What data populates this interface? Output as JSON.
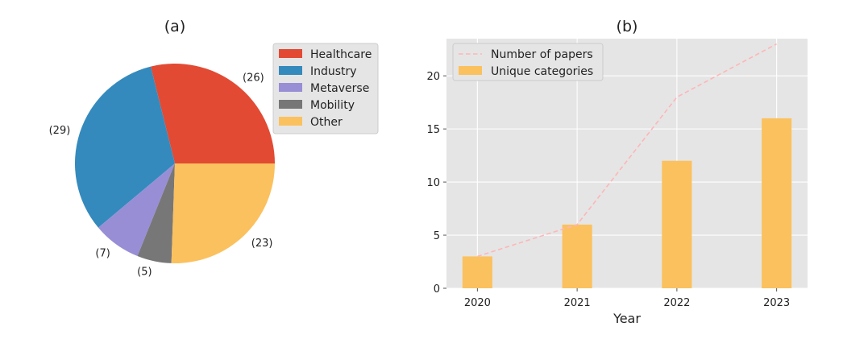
{
  "chart_data": [
    {
      "type": "pie",
      "title": "(a)",
      "categories": [
        "Healthcare",
        "Industry",
        "Metaverse",
        "Mobility",
        "Other"
      ],
      "values": [
        26,
        29,
        7,
        5,
        23
      ],
      "data_labels": [
        "(26)",
        "(29)",
        "(7)",
        "(5)",
        "(23)"
      ],
      "colors": [
        "#E24A33",
        "#348ABD",
        "#988ED5",
        "#777777",
        "#FBC15E"
      ],
      "legend_position": "right"
    },
    {
      "type": "bar",
      "title": "(b)",
      "xlabel": "Year",
      "ylabel": "",
      "categories": [
        "2020",
        "2021",
        "2022",
        "2023"
      ],
      "ylim": [
        0,
        23.5
      ],
      "yticks": [
        "0",
        "5",
        "10",
        "15",
        "20"
      ],
      "legend_position": "top-left",
      "grid": true,
      "series": [
        {
          "name": "Number of papers",
          "type": "line",
          "style": "dashed",
          "color": "#FFB5B8",
          "values": [
            3,
            6,
            18,
            23
          ]
        },
        {
          "name": "Unique categories",
          "type": "bar",
          "color": "#FBC15E",
          "values": [
            3,
            6,
            12,
            16
          ]
        }
      ]
    }
  ]
}
